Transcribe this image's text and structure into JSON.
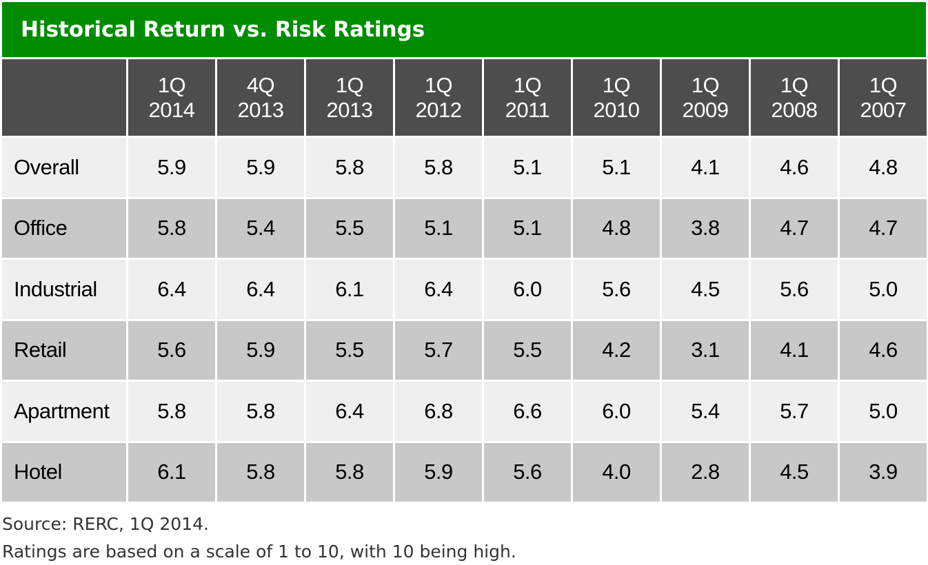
{
  "chart_data": {
    "type": "table",
    "title": "Historical Return vs. Risk Ratings",
    "columns": [
      {
        "line1": "1Q",
        "line2": "2014"
      },
      {
        "line1": "4Q",
        "line2": "2013"
      },
      {
        "line1": "1Q",
        "line2": "2013"
      },
      {
        "line1": "1Q",
        "line2": "2012"
      },
      {
        "line1": "1Q",
        "line2": "2011"
      },
      {
        "line1": "1Q",
        "line2": "2010"
      },
      {
        "line1": "1Q",
        "line2": "2009"
      },
      {
        "line1": "1Q",
        "line2": "2008"
      },
      {
        "line1": "1Q",
        "line2": "2007"
      }
    ],
    "rows": [
      {
        "label": "Overall",
        "values": [
          "5.9",
          "5.9",
          "5.8",
          "5.8",
          "5.1",
          "5.1",
          "4.1",
          "4.6",
          "4.8"
        ]
      },
      {
        "label": "Office",
        "values": [
          "5.8",
          "5.4",
          "5.5",
          "5.1",
          "5.1",
          "4.8",
          "3.8",
          "4.7",
          "4.7"
        ]
      },
      {
        "label": "Industrial",
        "values": [
          "6.4",
          "6.4",
          "6.1",
          "6.4",
          "6.0",
          "5.6",
          "4.5",
          "5.6",
          "5.0"
        ]
      },
      {
        "label": "Retail",
        "values": [
          "5.6",
          "5.9",
          "5.5",
          "5.7",
          "5.5",
          "4.2",
          "3.1",
          "4.1",
          "4.6"
        ]
      },
      {
        "label": "Apartment",
        "values": [
          "5.8",
          "5.8",
          "6.4",
          "6.8",
          "6.6",
          "6.0",
          "5.4",
          "5.7",
          "5.0"
        ]
      },
      {
        "label": "Hotel",
        "values": [
          "6.1",
          "5.8",
          "5.8",
          "5.9",
          "5.6",
          "4.0",
          "2.8",
          "4.5",
          "3.9"
        ]
      }
    ]
  },
  "footnotes": {
    "source": "Source: RERC, 1Q 2014.",
    "note": "Ratings are based on a scale of 1 to 10, with 10 being high."
  },
  "colors": {
    "title_bg": "#008c00",
    "header_bg": "#4d4d4d",
    "row_light": "#efefef",
    "row_dark": "#c8c8c8"
  }
}
